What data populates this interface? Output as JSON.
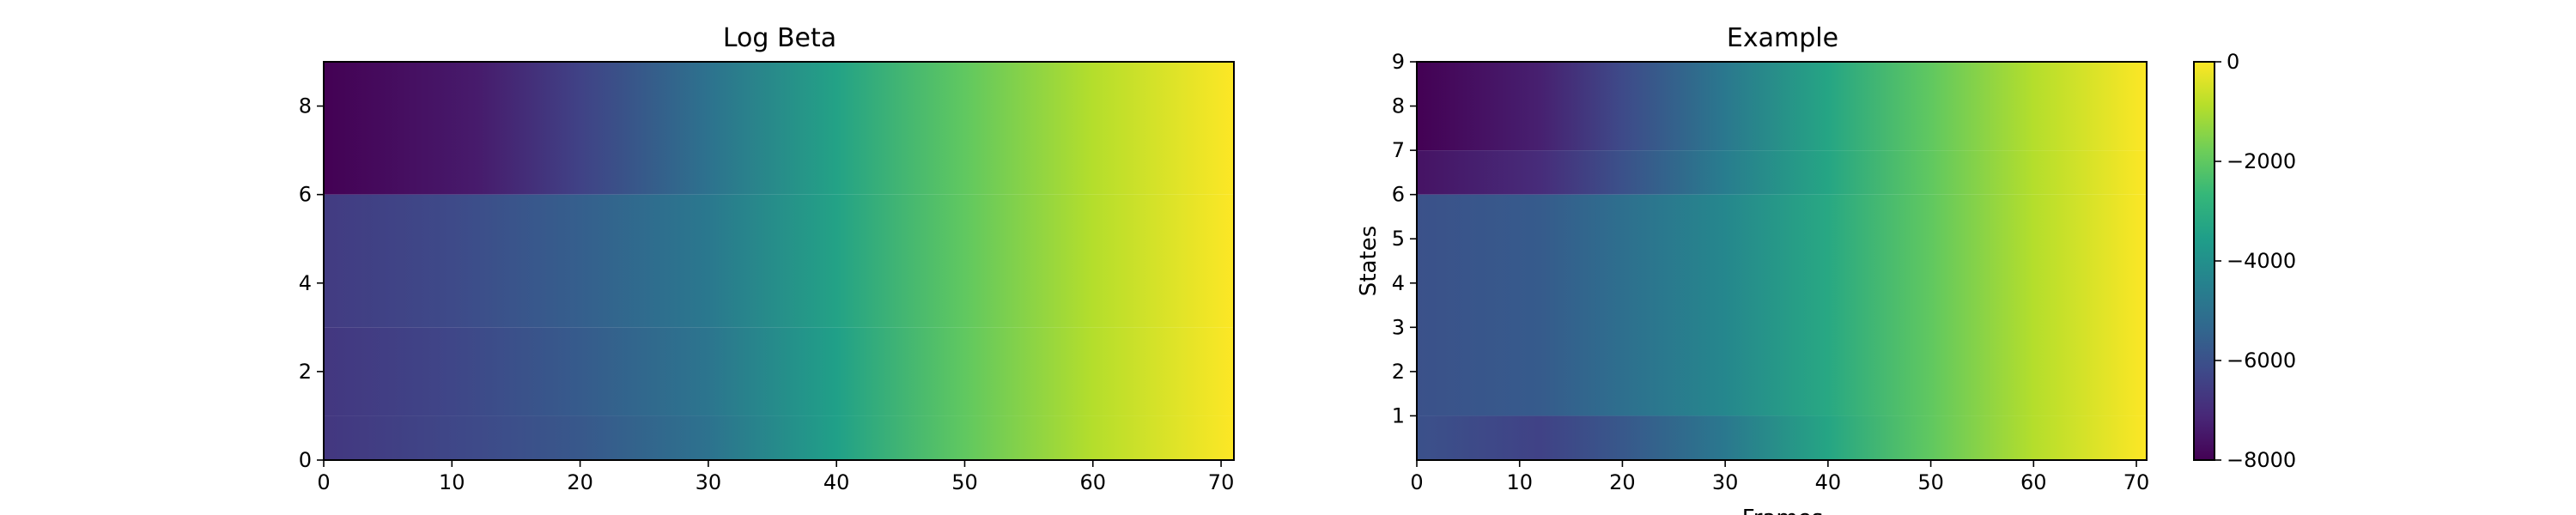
{
  "chart_data": [
    {
      "type": "heatmap",
      "title": "Log Beta",
      "xlabel": "",
      "ylabel": "",
      "xlim": [
        0,
        71
      ],
      "ylim": [
        0,
        9
      ],
      "x_ticks": [
        0,
        10,
        20,
        30,
        40,
        50,
        60,
        70
      ],
      "y_ticks": [
        0,
        2,
        4,
        6,
        8
      ],
      "colormap": "viridis",
      "value_range": [
        -8000,
        0
      ],
      "row_bands": [
        {
          "y_from": 6,
          "y_to": 9,
          "values_at_x": [
            [
              0,
              -8000
            ],
            [
              12,
              -7400
            ],
            [
              20,
              -6400
            ],
            [
              30,
              -5000
            ],
            [
              40,
              -3400
            ],
            [
              50,
              -2000
            ],
            [
              60,
              -900
            ],
            [
              71,
              0
            ]
          ]
        },
        {
          "y_from": 3,
          "y_to": 6,
          "values_at_x": [
            [
              0,
              -6600
            ],
            [
              10,
              -6200
            ],
            [
              20,
              -5600
            ],
            [
              30,
              -4800
            ],
            [
              40,
              -3400
            ],
            [
              50,
              -2000
            ],
            [
              60,
              -900
            ],
            [
              71,
              0
            ]
          ]
        },
        {
          "y_from": 1,
          "y_to": 3,
          "values_at_x": [
            [
              0,
              -6700
            ],
            [
              10,
              -6300
            ],
            [
              20,
              -5700
            ],
            [
              30,
              -4900
            ],
            [
              40,
              -3500
            ],
            [
              50,
              -2000
            ],
            [
              60,
              -900
            ],
            [
              71,
              0
            ]
          ]
        },
        {
          "y_from": 0,
          "y_to": 1,
          "values_at_x": [
            [
              0,
              -6700
            ],
            [
              12,
              -6200
            ],
            [
              20,
              -5800
            ],
            [
              30,
              -5000
            ],
            [
              40,
              -3500
            ],
            [
              50,
              -2000
            ],
            [
              60,
              -900
            ],
            [
              71,
              0
            ]
          ]
        }
      ]
    },
    {
      "type": "heatmap",
      "title": "Example",
      "xlabel": "Frames",
      "ylabel": "States",
      "xlim": [
        0,
        71
      ],
      "ylim": [
        0,
        9
      ],
      "x_ticks": [
        0,
        10,
        20,
        30,
        40,
        50,
        60,
        70
      ],
      "y_ticks": [
        1,
        2,
        3,
        4,
        5,
        6,
        7,
        8,
        9
      ],
      "colormap": "viridis",
      "value_range": [
        -8000,
        0
      ],
      "row_bands": [
        {
          "y_from": 7,
          "y_to": 9,
          "values_at_x": [
            [
              0,
              -8000
            ],
            [
              12,
              -7300
            ],
            [
              20,
              -6200
            ],
            [
              30,
              -4800
            ],
            [
              40,
              -3300
            ],
            [
              50,
              -2000
            ],
            [
              60,
              -900
            ],
            [
              71,
              0
            ]
          ]
        },
        {
          "y_from": 6,
          "y_to": 7,
          "values_at_x": [
            [
              0,
              -7600
            ],
            [
              12,
              -7000
            ],
            [
              20,
              -6000
            ],
            [
              30,
              -4600
            ],
            [
              40,
              -3300
            ],
            [
              50,
              -2000
            ],
            [
              60,
              -900
            ],
            [
              71,
              0
            ]
          ]
        },
        {
          "y_from": 1,
          "y_to": 6,
          "values_at_x": [
            [
              0,
              -6000
            ],
            [
              12,
              -5700
            ],
            [
              20,
              -5100
            ],
            [
              30,
              -4300
            ],
            [
              40,
              -3200
            ],
            [
              50,
              -2000
            ],
            [
              60,
              -900
            ],
            [
              71,
              0
            ]
          ]
        },
        {
          "y_from": 0,
          "y_to": 1,
          "values_at_x": [
            [
              0,
              -6000
            ],
            [
              12,
              -6400
            ],
            [
              20,
              -5800
            ],
            [
              30,
              -4800
            ],
            [
              40,
              -3300
            ],
            [
              50,
              -2000
            ],
            [
              60,
              -900
            ],
            [
              71,
              0
            ]
          ]
        }
      ]
    }
  ],
  "colorbar": {
    "ticks": [
      0,
      -2000,
      -4000,
      -6000,
      -8000
    ],
    "tick_labels": [
      "0",
      "−2000",
      "−4000",
      "−6000",
      "−8000"
    ]
  },
  "colors": {
    "viridis": [
      "#440154",
      "#482878",
      "#3e4989",
      "#31688e",
      "#26828e",
      "#1f9e89",
      "#35b779",
      "#6ece58",
      "#b5de2b",
      "#fde725"
    ]
  }
}
